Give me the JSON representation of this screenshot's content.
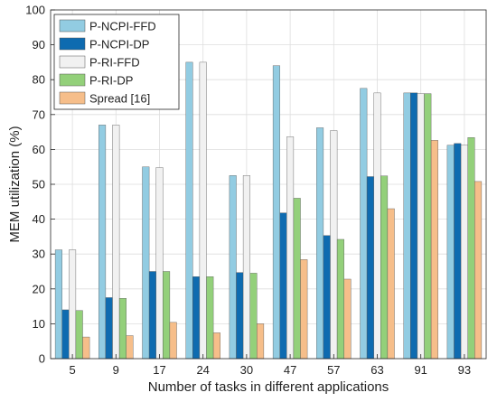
{
  "chart_data": {
    "type": "bar",
    "xlabel": "Number of tasks in different applications",
    "ylabel": "MEM utilization (%)",
    "ylim": [
      0,
      100
    ],
    "yticks": [
      0,
      10,
      20,
      30,
      40,
      50,
      60,
      70,
      80,
      90,
      100
    ],
    "grid": true,
    "legend_position": "top-left",
    "categories": [
      "5",
      "9",
      "17",
      "24",
      "30",
      "47",
      "57",
      "63",
      "91",
      "93"
    ],
    "series": [
      {
        "name": "P-NCPI-FFD",
        "color": "#92cce2",
        "values": [
          31.2,
          67.0,
          55.0,
          85.0,
          52.5,
          84.0,
          66.2,
          77.5,
          76.2,
          61.2
        ]
      },
      {
        "name": "P-NCPI-DP",
        "color": "#0e6bb0",
        "values": [
          14.0,
          17.5,
          25.0,
          23.5,
          24.7,
          41.8,
          35.3,
          52.2,
          76.2,
          61.7
        ]
      },
      {
        "name": "P-RI-FFD",
        "color": "#f1f1f1",
        "values": [
          31.2,
          67.0,
          54.8,
          85.0,
          52.5,
          63.6,
          65.4,
          76.2,
          76.0,
          61.2
        ]
      },
      {
        "name": "P-RI-DP",
        "color": "#93d07a",
        "values": [
          13.8,
          17.3,
          25.0,
          23.5,
          24.5,
          46.0,
          34.2,
          52.4,
          76.0,
          63.4
        ]
      },
      {
        "name": "Spread [16]",
        "color": "#f6be8a",
        "values": [
          6.2,
          6.6,
          10.4,
          7.4,
          10.0,
          28.4,
          22.8,
          43.0,
          62.6,
          50.8
        ]
      }
    ]
  }
}
